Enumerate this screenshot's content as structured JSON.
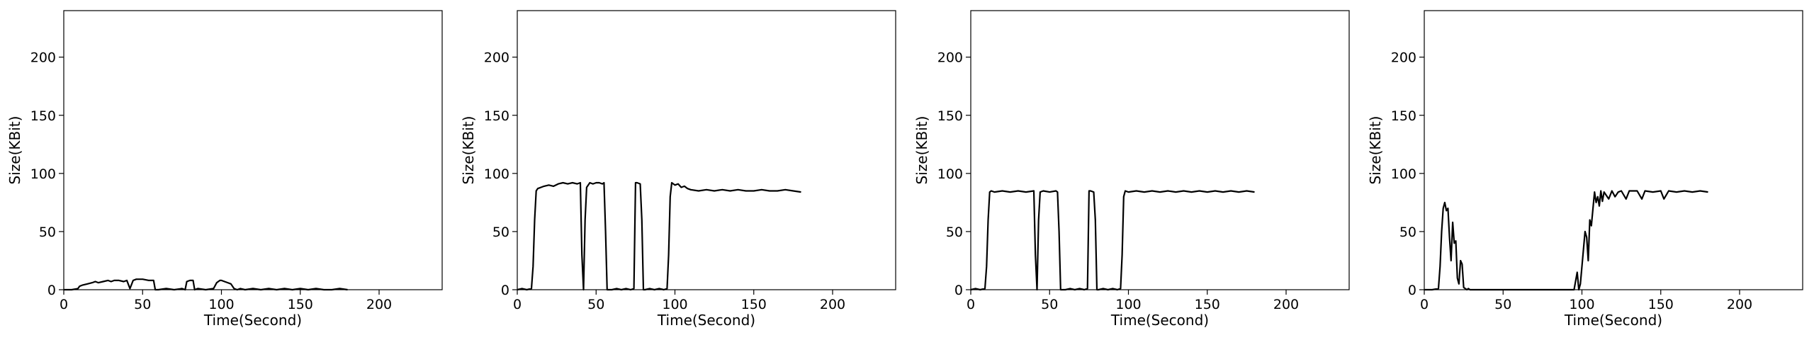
{
  "chart_data": [
    {
      "type": "line",
      "xlabel": "Time(Second)",
      "ylabel": "Size(KBit)",
      "xlim": [
        0,
        240
      ],
      "ylim": [
        0,
        240
      ],
      "xticks": [
        0,
        50,
        100,
        150,
        200
      ],
      "yticks": [
        0,
        50,
        100,
        150,
        200
      ],
      "grid": false,
      "series": [
        {
          "color": "#000000",
          "x": [
            0,
            5,
            9,
            10,
            12,
            15,
            18,
            20,
            22,
            25,
            28,
            30,
            32,
            35,
            38,
            40,
            42,
            44,
            46,
            50,
            54,
            57,
            58,
            60,
            65,
            70,
            75,
            77,
            78,
            80,
            82,
            83,
            85,
            90,
            95,
            97,
            99,
            100,
            102,
            104,
            106,
            108,
            110,
            112,
            115,
            120,
            125,
            130,
            135,
            140,
            145,
            150,
            155,
            160,
            165,
            170,
            175,
            180
          ],
          "y": [
            0,
            0,
            1,
            3,
            4,
            5,
            6,
            7,
            6,
            7,
            8,
            7,
            8,
            8,
            7,
            8,
            1,
            8,
            9,
            9,
            8,
            8,
            0,
            0,
            1,
            0,
            1,
            0,
            7,
            8,
            8,
            0,
            1,
            0,
            1,
            6,
            8,
            8,
            7,
            6,
            5,
            1,
            0,
            1,
            0,
            1,
            0,
            1,
            0,
            1,
            0,
            1,
            0,
            1,
            0,
            0,
            1,
            0
          ]
        }
      ]
    },
    {
      "type": "line",
      "xlabel": "Time(Second)",
      "ylabel": "Size(KBit)",
      "xlim": [
        0,
        240
      ],
      "ylim": [
        0,
        240
      ],
      "xticks": [
        0,
        50,
        100,
        150,
        200
      ],
      "yticks": [
        0,
        50,
        100,
        150,
        200
      ],
      "grid": false,
      "series": [
        {
          "color": "#000000",
          "x": [
            0,
            3,
            6,
            9,
            10,
            11,
            12,
            13,
            15,
            17,
            20,
            23,
            26,
            29,
            32,
            35,
            38,
            40,
            41,
            42,
            43,
            44,
            46,
            48,
            50,
            52,
            54,
            55,
            56,
            57,
            60,
            63,
            66,
            69,
            72,
            74,
            75,
            76,
            78,
            79,
            80,
            81,
            84,
            87,
            90,
            93,
            95,
            96,
            97,
            98,
            100,
            102,
            104,
            106,
            108,
            110,
            115,
            120,
            125,
            130,
            135,
            140,
            145,
            150,
            155,
            160,
            165,
            170,
            175,
            180
          ],
          "y": [
            0,
            1,
            0,
            1,
            20,
            60,
            85,
            87,
            88,
            89,
            90,
            89,
            91,
            92,
            91,
            92,
            91,
            92,
            30,
            0,
            60,
            88,
            92,
            91,
            92,
            92,
            91,
            92,
            50,
            0,
            0,
            1,
            0,
            1,
            0,
            1,
            92,
            92,
            91,
            60,
            0,
            0,
            1,
            0,
            1,
            0,
            1,
            30,
            80,
            92,
            90,
            91,
            88,
            89,
            87,
            86,
            85,
            86,
            85,
            86,
            85,
            86,
            85,
            85,
            86,
            85,
            85,
            86,
            85,
            84
          ]
        }
      ]
    },
    {
      "type": "line",
      "xlabel": "Time(Second)",
      "ylabel": "Size(KBit)",
      "xlim": [
        0,
        240
      ],
      "ylim": [
        0,
        240
      ],
      "xticks": [
        0,
        50,
        100,
        150,
        200
      ],
      "yticks": [
        0,
        50,
        100,
        150,
        200
      ],
      "grid": false,
      "series": [
        {
          "color": "#000000",
          "x": [
            0,
            3,
            6,
            9,
            10,
            11,
            12,
            13,
            15,
            20,
            25,
            30,
            35,
            40,
            41,
            42,
            43,
            44,
            46,
            50,
            54,
            55,
            56,
            57,
            60,
            63,
            66,
            69,
            72,
            74,
            75,
            76,
            78,
            79,
            80,
            81,
            84,
            87,
            90,
            93,
            95,
            96,
            97,
            98,
            100,
            105,
            110,
            115,
            120,
            125,
            130,
            135,
            140,
            145,
            150,
            155,
            160,
            165,
            170,
            175,
            180
          ],
          "y": [
            0,
            1,
            0,
            1,
            20,
            60,
            84,
            85,
            84,
            85,
            84,
            85,
            84,
            85,
            30,
            0,
            60,
            84,
            85,
            84,
            85,
            84,
            50,
            0,
            0,
            1,
            0,
            1,
            0,
            1,
            85,
            85,
            84,
            60,
            0,
            0,
            1,
            0,
            1,
            0,
            1,
            30,
            80,
            85,
            84,
            85,
            84,
            85,
            84,
            85,
            84,
            85,
            84,
            85,
            84,
            85,
            84,
            85,
            84,
            85,
            84
          ]
        }
      ]
    },
    {
      "type": "line",
      "xlabel": "Time(Second)",
      "ylabel": "Size(KBit)",
      "xlim": [
        0,
        240
      ],
      "ylim": [
        0,
        240
      ],
      "xticks": [
        0,
        50,
        100,
        150,
        200
      ],
      "yticks": [
        0,
        50,
        100,
        150,
        200
      ],
      "grid": false,
      "series": [
        {
          "color": "#000000",
          "x": [
            0,
            5,
            9,
            10,
            11,
            12,
            13,
            14,
            15,
            16,
            17,
            18,
            19,
            20,
            21,
            22,
            23,
            24,
            25,
            26,
            27,
            28,
            29,
            30,
            35,
            40,
            50,
            60,
            70,
            80,
            90,
            95,
            97,
            98,
            99,
            100,
            101,
            102,
            103,
            104,
            105,
            106,
            107,
            108,
            109,
            110,
            111,
            112,
            113,
            114,
            115,
            117,
            119,
            121,
            123,
            125,
            128,
            130,
            135,
            138,
            140,
            145,
            150,
            152,
            155,
            160,
            165,
            170,
            175,
            180
          ],
          "y": [
            0,
            0,
            1,
            20,
            50,
            70,
            75,
            68,
            70,
            45,
            25,
            58,
            40,
            42,
            10,
            5,
            25,
            22,
            2,
            1,
            0,
            1,
            0,
            0,
            0,
            0,
            0,
            0,
            0,
            0,
            0,
            0,
            15,
            0,
            5,
            20,
            35,
            50,
            45,
            25,
            60,
            55,
            70,
            84,
            75,
            80,
            72,
            85,
            76,
            84,
            82,
            78,
            85,
            80,
            84,
            85,
            78,
            85,
            85,
            78,
            85,
            84,
            85,
            78,
            85,
            84,
            85,
            84,
            85,
            84
          ]
        }
      ]
    }
  ]
}
